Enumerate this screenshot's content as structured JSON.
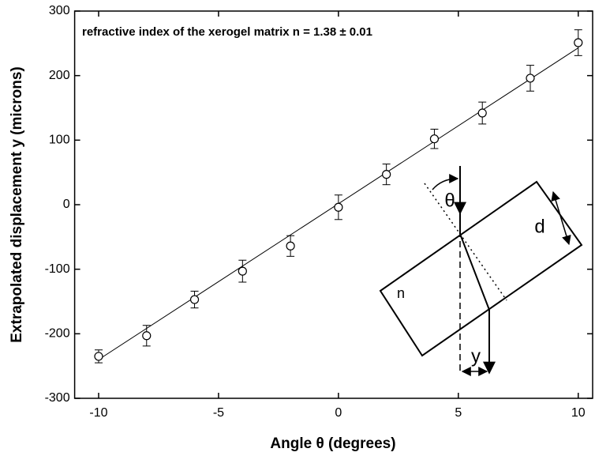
{
  "chart_data": {
    "type": "scatter",
    "annotation": "refractive index of the xerogel matrix n = 1.38 ± 0.01",
    "x_label": "Angle θ (degrees)",
    "y_label": "Extrapolated displacement y (microns)",
    "x": [
      -10,
      -8,
      -6,
      -4,
      -2,
      0,
      2,
      4,
      6,
      8,
      10
    ],
    "values": [
      -235,
      -203,
      -147,
      -103,
      -64,
      -4,
      47,
      102,
      142,
      196,
      251
    ],
    "errors": [
      10,
      16,
      13,
      17,
      16,
      19,
      16,
      15,
      17,
      20,
      20
    ],
    "fit": {
      "x": [
        -10,
        10
      ],
      "values": [
        -240,
        243
      ]
    },
    "color": "#000000",
    "xlim": [
      -11,
      10.6
    ],
    "xticks": [
      -10,
      -5,
      0,
      5,
      10
    ],
    "ylim": [
      -300,
      300
    ],
    "yticks": [
      -300,
      -200,
      -100,
      0,
      100,
      200,
      300
    ],
    "diagram_labels": {
      "angle": "θ",
      "thickness": "d",
      "index": "n",
      "shift": "y"
    }
  }
}
